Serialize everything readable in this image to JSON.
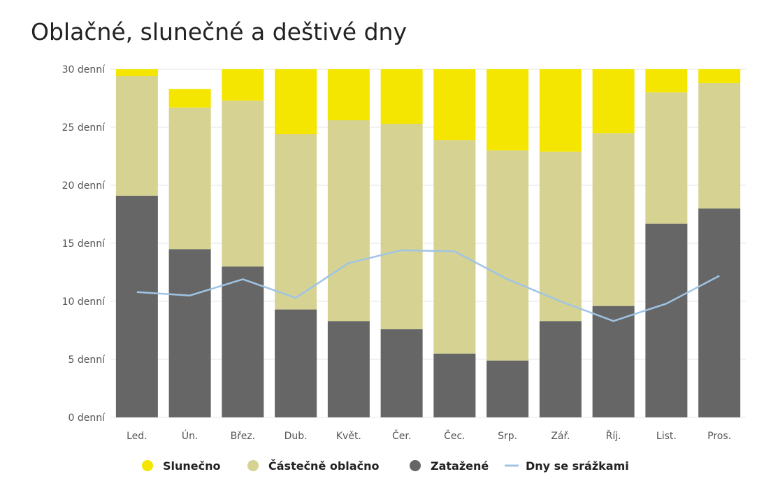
{
  "chart_data": {
    "type": "bar",
    "title": "Oblačné, slunečné a deštivé dny",
    "xlabel": "",
    "ylabel": "",
    "categories": [
      "Led.",
      "Ún.",
      "Břez.",
      "Dub.",
      "Květ.",
      "Čer.",
      "Čec.",
      "Srp.",
      "Zář.",
      "Říj.",
      "List.",
      "Pros."
    ],
    "ylim": [
      0,
      30
    ],
    "yticks": [
      0,
      5,
      10,
      15,
      20,
      25,
      30
    ],
    "ytick_labels": [
      "0 denní",
      "5 denní",
      "10 denní",
      "15 denní",
      "20 denní",
      "25 denní",
      "30 denní"
    ],
    "stacked": true,
    "series": [
      {
        "name": "Zatažené",
        "type": "bar",
        "color": "#666666",
        "values": [
          19.1,
          14.5,
          13.0,
          9.3,
          8.3,
          7.6,
          5.5,
          4.9,
          8.3,
          9.6,
          16.7,
          18.0
        ]
      },
      {
        "name": "Částečně oblačno",
        "type": "bar",
        "color": "#d6d292",
        "values": [
          10.3,
          12.2,
          14.3,
          15.1,
          17.3,
          17.7,
          18.4,
          18.1,
          14.6,
          14.9,
          11.3,
          10.8
        ]
      },
      {
        "name": "Slunečno",
        "type": "bar",
        "color": "#f4e600",
        "values": [
          0.6,
          1.6,
          2.7,
          5.6,
          4.4,
          4.7,
          6.1,
          7.0,
          7.1,
          5.5,
          2.0,
          1.2
        ]
      },
      {
        "name": "Dny se srážkami",
        "type": "line",
        "color": "#a0c4e4",
        "values": [
          10.8,
          10.5,
          11.9,
          10.3,
          13.3,
          14.4,
          14.3,
          11.9,
          10.0,
          8.3,
          9.8,
          12.2
        ]
      }
    ],
    "legend": [
      "Slunečno",
      "Částečně oblačno",
      "Zatažené",
      "Dny se srážkami"
    ],
    "legend_position": "bottom",
    "grid": true
  }
}
